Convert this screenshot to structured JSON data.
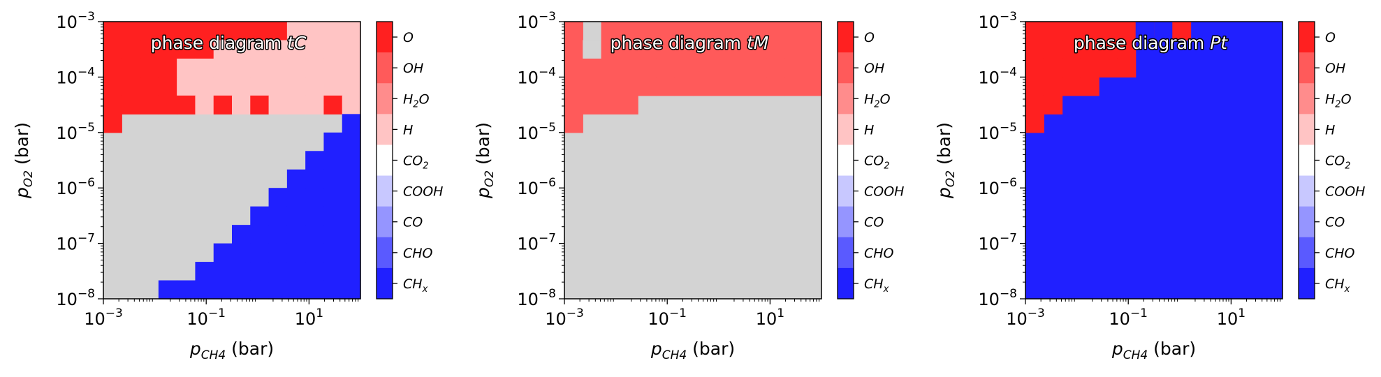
{
  "chart_data": [
    {
      "type": "heatmap",
      "title_prefix": "phase diagram ",
      "title_italic": "tC",
      "xlabel": "p_CH4 (bar)",
      "ylabel": "p_O2 (bar)",
      "x_scale": "log",
      "y_scale": "log",
      "xlim": [
        0.001,
        100
      ],
      "ylim": [
        1e-08,
        0.001
      ],
      "x_ticks": [
        0.001,
        0.1,
        10
      ],
      "y_ticks": [
        1e-08,
        1e-07,
        1e-06,
        1e-05,
        0.0001,
        0.001
      ],
      "legend_position": "colorbar-right",
      "grid": false,
      "n_x_bins": 14,
      "n_y_bins": 15,
      "upper_region_rows": 4,
      "species_codes": {
        "O": 0,
        "OH": 1,
        "H2O": 2,
        "H": 3,
        "CO2": 4,
        "COOH": 5,
        "CO": 6,
        "CHO": 7,
        "CHx": 8,
        "none": -1
      },
      "regions": [
        {
          "rows_from_top": [
            0,
            0
          ],
          "cols": [
            [
              0,
              9,
              0
            ],
            [
              10,
              13,
              3
            ]
          ]
        },
        {
          "rows_from_top": [
            1,
            1
          ],
          "cols": [
            [
              0,
              5,
              0
            ],
            [
              6,
              13,
              3
            ]
          ]
        },
        {
          "rows_from_top": [
            2,
            3
          ],
          "cols": [
            [
              0,
              3,
              0
            ],
            [
              4,
              13,
              3
            ]
          ]
        },
        {
          "rows_from_top": [
            4,
            4
          ],
          "cols": [
            [
              0,
              4,
              0
            ],
            [
              5,
              5,
              3
            ],
            [
              6,
              6,
              0
            ],
            [
              7,
              7,
              3
            ],
            [
              8,
              8,
              0
            ],
            [
              9,
              11,
              3
            ],
            [
              12,
              12,
              0
            ],
            [
              13,
              13,
              3
            ]
          ]
        }
      ],
      "ch_boundary_by_col": [
        null,
        null,
        null,
        null,
        14,
        14,
        13,
        13,
        12,
        11,
        10,
        9,
        8,
        7
      ],
      "ch_boundary_extra": [
        [
          2,
          14
        ],
        [
          3,
          14
        ],
        [
          10,
          9
        ],
        [
          12,
          7
        ],
        [
          13,
          5
        ]
      ],
      "other_code": -1
    },
    {
      "type": "heatmap",
      "title_prefix": "phase diagram ",
      "title_italic": "tM",
      "xlabel": "p_CH4 (bar)",
      "ylabel": "p_O2 (bar)",
      "x_scale": "log",
      "y_scale": "log",
      "xlim": [
        0.001,
        100
      ],
      "ylim": [
        1e-08,
        0.001
      ],
      "x_ticks": [
        0.001,
        0.1,
        10
      ],
      "y_ticks": [
        1e-08,
        1e-07,
        1e-06,
        1e-05,
        0.0001,
        0.001
      ],
      "legend_position": "colorbar-right",
      "grid": false
    },
    {
      "type": "heatmap",
      "title_prefix": "phase diagram ",
      "title_italic": "Pt",
      "xlabel": "p_CH4 (bar)",
      "ylabel": "p_O2 (bar)",
      "x_scale": "log",
      "y_scale": "log",
      "xlim": [
        0.001,
        100
      ],
      "ylim": [
        1e-08,
        0.001
      ],
      "x_ticks": [
        0.001,
        0.1,
        10
      ],
      "y_ticks": [
        1e-08,
        1e-07,
        1e-06,
        1e-05,
        0.0001,
        0.001
      ],
      "legend_position": "colorbar-right",
      "grid": false
    }
  ],
  "colorbar": {
    "labels": [
      {
        "main": "O",
        "sub": ""
      },
      {
        "main": "OH",
        "sub": ""
      },
      {
        "main": "H",
        "sub": "2",
        "tail": "O"
      },
      {
        "main": "H",
        "sub": ""
      },
      {
        "main": "CO",
        "sub": "2"
      },
      {
        "main": "COOH",
        "sub": ""
      },
      {
        "main": "CO",
        "sub": ""
      },
      {
        "main": "CHO",
        "sub": ""
      },
      {
        "main": "CH",
        "sub": "x"
      }
    ],
    "colors": [
      "#ff2020",
      "#ff5a5a",
      "#ff8c8c",
      "#ffc4c4",
      "#ffffff",
      "#c8c8ff",
      "#9595ff",
      "#5a5aff",
      "#2020ff"
    ]
  },
  "colors": {
    "none_region": "#d3d3d3",
    "O": "#ff2020",
    "OH": "#ff5a5a",
    "H": "#ffc4c4",
    "CHx": "#2020ff"
  },
  "axis_text": {
    "x_main": "p",
    "x_sub": "CH4",
    "x_unit": " (bar)",
    "y_main": "p",
    "y_sub": "O2",
    "y_unit": " (bar)",
    "tick_base": "10"
  }
}
